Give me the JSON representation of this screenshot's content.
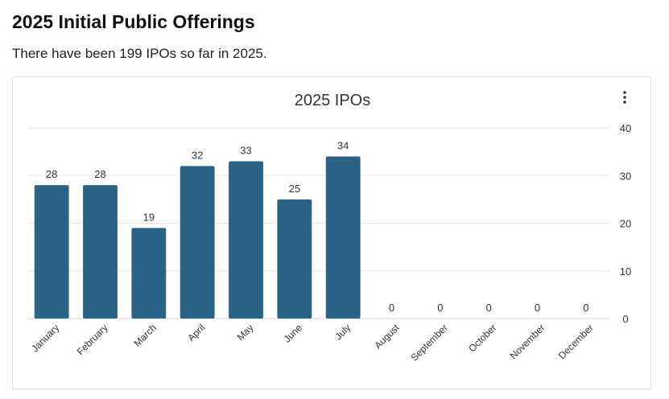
{
  "page": {
    "title": "2025 Initial Public Offerings",
    "subtitle": "There have been 199 IPOs so far in 2025."
  },
  "chart_menu_icon": "vertical-ellipsis-icon",
  "colors": {
    "bar": "#2b6386"
  },
  "chart_data": {
    "type": "bar",
    "title": "2025 IPOs",
    "categories": [
      "January",
      "February",
      "March",
      "April",
      "May",
      "June",
      "July",
      "August",
      "September",
      "October",
      "November",
      "December"
    ],
    "values": [
      28,
      28,
      19,
      32,
      33,
      25,
      34,
      0,
      0,
      0,
      0,
      0
    ],
    "xlabel": "",
    "ylabel": "",
    "ylim": [
      0,
      40
    ],
    "yticks": [
      0,
      10,
      20,
      30,
      40
    ],
    "y_axis_position": "right",
    "grid": true,
    "legend": false,
    "data_labels": true
  }
}
